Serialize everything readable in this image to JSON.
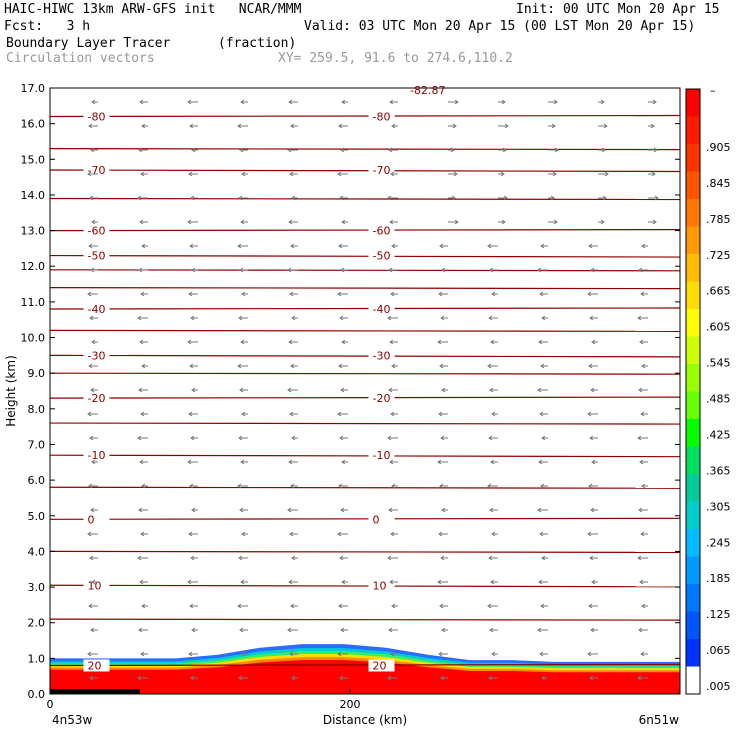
{
  "header": {
    "title_left": "HAIC-HIWC 13km ARW-GFS init   NCAR/MMM",
    "init": "Init: 00 UTC Mon 20 Apr 15",
    "fcst_label": "Fcst:   3 h",
    "valid": "Valid: 03 UTC Mon 20 Apr 15 (00 LST Mon 20 Apr 15)",
    "field1": "Boundary Layer Tracer",
    "field1_units": "(fraction)",
    "field2": "Circulation vectors",
    "xy": "XY= 259.5, 91.6 to 274.6,110.2"
  },
  "chart_data": {
    "type": "cross-section",
    "ylabel": "Height (km)",
    "xlabel": "Distance (km)",
    "ylim": [
      0,
      17
    ],
    "xlim": [
      0,
      420
    ],
    "yticks": [
      "0.0",
      "1.0",
      "2.0",
      "3.0",
      "4.0",
      "5.0",
      "6.0",
      "7.0",
      "8.0",
      "9.0",
      "10.0",
      "11.0",
      "12.0",
      "13.0",
      "14.0",
      "15.0",
      "16.0",
      "17.0"
    ],
    "xticks": [
      {
        "value": 0,
        "label": "0"
      },
      {
        "value": 200,
        "label": "200"
      }
    ],
    "x_endpoints": {
      "left": "4n53w",
      "right": "6n51w"
    },
    "top_label": "-82.87",
    "temperature_contours": [
      {
        "height": 16.2,
        "label": "-80"
      },
      {
        "height": 14.7,
        "label": "-70"
      },
      {
        "height": 13.0,
        "label": "-60"
      },
      {
        "height": 12.3,
        "label": "-50"
      },
      {
        "height": 10.8,
        "label": "-40"
      },
      {
        "height": 9.5,
        "label": "-30"
      },
      {
        "height": 8.3,
        "label": "-20"
      },
      {
        "height": 6.7,
        "label": "-10"
      },
      {
        "height": 4.9,
        "label": "0"
      },
      {
        "height": 3.05,
        "label": "10"
      },
      {
        "height": 0.8,
        "label": "20"
      }
    ],
    "colorbar": {
      "labels": [
        ".905",
        ".845",
        ".785",
        ".725",
        ".665",
        ".605",
        ".545",
        ".485",
        ".425",
        ".365",
        ".305",
        ".245",
        ".185",
        ".125",
        ".065",
        ".005"
      ],
      "top_label": "–",
      "colors": [
        "#ff0000",
        "#ff1a00",
        "#ff3300",
        "#ff5500",
        "#ff7700",
        "#ff9900",
        "#ffbb00",
        "#ffdd00",
        "#ffff00",
        "#ccff00",
        "#99ff00",
        "#66ff00",
        "#00ff00",
        "#00e060",
        "#00cc99",
        "#00cccc",
        "#00bbff",
        "#0099ff",
        "#0077ff",
        "#0055ff",
        "#0033ff",
        "#ffffff"
      ]
    },
    "tracer_layer": {
      "top_km": [
        1.0,
        1.0,
        1.0,
        1.0,
        1.1,
        1.3,
        1.4,
        1.4,
        1.3,
        1.1,
        0.95,
        0.95,
        0.9,
        0.9,
        0.9,
        0.9
      ]
    }
  }
}
